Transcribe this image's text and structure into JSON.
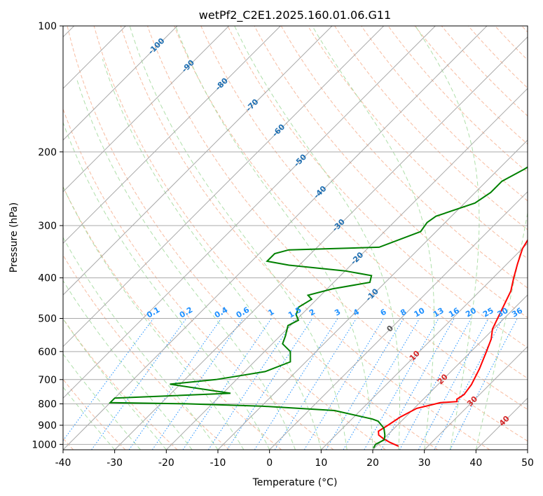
{
  "chart_data": {
    "type": "line",
    "title": "wetPf2_C2E1.2025.160.01.06.G11",
    "xlabel": "Temperature (°C)",
    "ylabel": "Pressure (hPa)",
    "xlim": [
      -40,
      50
    ],
    "ylim": [
      1030,
      100
    ],
    "y_scale": "log",
    "grid": true,
    "xticks": [
      -40,
      -30,
      -20,
      -10,
      0,
      10,
      20,
      30,
      40,
      50
    ],
    "yticks": [
      100,
      200,
      300,
      400,
      500,
      600,
      700,
      800,
      900,
      1000
    ],
    "colors": {
      "temperature": "#ff0000",
      "dewpoint": "#008000",
      "isotherm": "#a9a9a9",
      "dry_adiabat": "#f4a582",
      "moist_adiabat": "#a1d99b",
      "mixing_ratio": "#1e90ff",
      "isotherm_label": "#1f6fb2",
      "theta_label": "#d62728"
    },
    "series": [
      {
        "key": "temperature",
        "points": [
          [
            24.3,
            1010
          ],
          [
            22.0,
            990
          ],
          [
            20.0,
            970
          ],
          [
            18.3,
            950
          ],
          [
            17.5,
            930
          ],
          [
            18.2,
            900
          ],
          [
            19.0,
            860
          ],
          [
            20.5,
            820
          ],
          [
            24.0,
            795
          ],
          [
            27.0,
            790
          ],
          [
            26.5,
            780
          ],
          [
            27.0,
            760
          ],
          [
            26.5,
            720
          ],
          [
            25.0,
            660
          ],
          [
            23.0,
            600
          ],
          [
            21.5,
            560
          ],
          [
            19.8,
            530
          ],
          [
            18.0,
            480
          ],
          [
            16.0,
            430
          ],
          [
            14.0,
            400
          ],
          [
            12.0,
            370
          ],
          [
            10.0,
            340
          ],
          [
            8.3,
            300
          ],
          [
            6.5,
            270
          ],
          [
            4.8,
            240
          ],
          [
            3.0,
            215
          ],
          [
            1.8,
            200
          ],
          [
            0.5,
            185
          ],
          [
            -0.5,
            170
          ],
          [
            -1.2,
            158
          ],
          [
            -1.0,
            150
          ],
          [
            0.0,
            143
          ],
          [
            1.8,
            136
          ],
          [
            2.8,
            128
          ],
          [
            3.2,
            120
          ],
          [
            4.0,
            112
          ],
          [
            5.0,
            106
          ],
          [
            6.0,
            100
          ]
        ]
      },
      {
        "key": "dewpoint",
        "points": [
          [
            19.8,
            1020
          ],
          [
            19.5,
            1000
          ],
          [
            20.3,
            975
          ],
          [
            19.5,
            950
          ],
          [
            18.0,
            915
          ],
          [
            15.5,
            880
          ],
          [
            14.0,
            870
          ],
          [
            5.0,
            830
          ],
          [
            -10.0,
            810
          ],
          [
            -25.0,
            800
          ],
          [
            -40.0,
            795
          ],
          [
            -40.0,
            775
          ],
          [
            -18.5,
            755
          ],
          [
            -32.0,
            718
          ],
          [
            -24.0,
            700
          ],
          [
            -20.0,
            685
          ],
          [
            -16.0,
            670
          ],
          [
            -13.0,
            635
          ],
          [
            -15.0,
            600
          ],
          [
            -18.0,
            575
          ],
          [
            -19.0,
            550
          ],
          [
            -20.5,
            520
          ],
          [
            -19.5,
            505
          ],
          [
            -21.0,
            490
          ],
          [
            -22.0,
            470
          ],
          [
            -21.0,
            450
          ],
          [
            -22.5,
            440
          ],
          [
            -19.0,
            425
          ],
          [
            -13.0,
            410
          ],
          [
            -14.0,
            395
          ],
          [
            -20.0,
            385
          ],
          [
            -32.0,
            373
          ],
          [
            -37.0,
            365
          ],
          [
            -37.0,
            350
          ],
          [
            -35.0,
            343
          ],
          [
            -18.0,
            338
          ],
          [
            -13.0,
            310
          ],
          [
            -13.5,
            295
          ],
          [
            -13.0,
            285
          ],
          [
            -8.0,
            265
          ],
          [
            -7.0,
            250
          ],
          [
            -7.0,
            235
          ],
          [
            -5.0,
            220
          ],
          [
            -3.5,
            205
          ],
          [
            -2.5,
            190
          ],
          [
            -1.5,
            178
          ],
          [
            -1.5,
            170
          ],
          [
            -2.0,
            162
          ],
          [
            -1.0,
            155
          ],
          [
            -1.0,
            140
          ],
          [
            -1.0,
            130
          ],
          [
            -0.5,
            120
          ],
          [
            0.0,
            110
          ],
          [
            0.5,
            105
          ],
          [
            1.0,
            100
          ]
        ]
      }
    ],
    "isotherm_labels": [
      "-100",
      "-90",
      "-80",
      "-70",
      "-60",
      "-50",
      "-40",
      "-30",
      "-20",
      "-10",
      "0",
      "10",
      "20",
      "30",
      "40"
    ],
    "mixing_ratio_labels": [
      "0.1",
      "0.2",
      "0.4",
      "0.6",
      "1",
      "1.5",
      "2",
      "3",
      "4",
      "6",
      "8",
      "10",
      "13",
      "16",
      "20",
      "25",
      "30",
      "36"
    ]
  }
}
